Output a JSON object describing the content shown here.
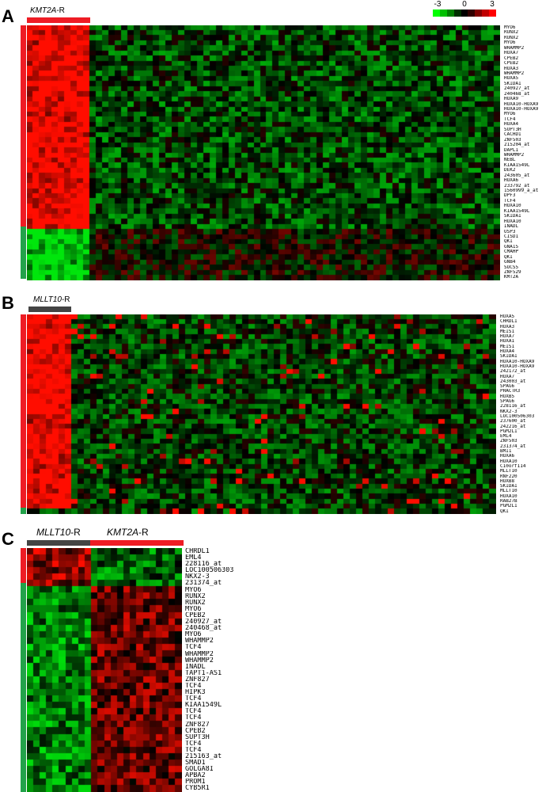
{
  "legend": {
    "ticks": [
      "-3",
      "0",
      "3"
    ],
    "colors": [
      "#00ff00",
      "#00c000",
      "#008000",
      "#003000",
      "#000000",
      "#300000",
      "#800000",
      "#c00000",
      "#ff0000"
    ]
  },
  "colors": {
    "red_bar": "#ee1c24",
    "green_bar": "#22a24a",
    "dark_bar": "#444444"
  },
  "panels": {
    "A": {
      "letter": "A",
      "header": {
        "gene": "KMT2A",
        "suffix": "-R"
      },
      "genes": [
        "MYO6",
        "RUNX2",
        "RUNX2",
        "MYO6",
        "WHAMMP2",
        "HOXA7",
        "CPEB2",
        "CPEB2",
        "HOXA3",
        "WHAMMP2",
        "HOXA5",
        "SKIDA1",
        "240927_at",
        "240468_at",
        "HOXA9",
        "HOXA10-HOXA9",
        "HOXA10-HOXA9",
        "MYO6",
        "TCF4",
        "HOXA4",
        "SUPT3H",
        "CACHD1",
        "ZNF503",
        "215204_at",
        "DAPL1",
        "WHAMMP2",
        "NEBL",
        "KIAA1549L",
        "DEK2",
        "243605_at",
        "HOXA6",
        "233792_at",
        "1560999_a_at",
        "DPF3",
        "TCF4",
        "HOXA10",
        "KIAA1549L",
        "SKIDA1",
        "HOXA10",
        "INADL",
        "USP3",
        "CISD1",
        "QKI",
        "GNA15",
        "CMAHP",
        "QKI",
        "GNB4",
        "SOCS5",
        "ZNF529",
        "KMT2A"
      ]
    },
    "B": {
      "letter": "B",
      "header": {
        "gene": "MLLT10",
        "suffix": "-R"
      },
      "genes": [
        "HOXA5",
        "CHRDL1",
        "HOXA3",
        "MEIS1",
        "HOXA7",
        "HOXA1",
        "MEIS1",
        "HOXA4",
        "SKIDA1",
        "HOXA10-HOXA9",
        "HOXA10-HOXA9",
        "242172_at",
        "HOXA7",
        "243003_at",
        "SPAG6",
        "PHACTR3",
        "HOXB5",
        "SPAG6",
        "228116_at",
        "NKX2-3",
        "LOC100506303",
        "237600_at",
        "242216_at",
        "PGM2L1",
        "EML4",
        "ZNF503",
        "231374_at",
        "BMI1",
        "HOXA6",
        "HOXA10",
        "C10orf114",
        "MLLT10",
        "RNF220",
        "HOXB8",
        "SKIDA1",
        "MLLT10",
        "HOXA10",
        "RAB27B",
        "PGM2L1",
        "QKI"
      ]
    },
    "C": {
      "letter": "C",
      "header1": {
        "gene": "MLLT10",
        "suffix": "-R"
      },
      "header2": {
        "gene": "KMT2A",
        "suffix": "-R"
      },
      "genes": [
        "CHRDL1",
        "EML4",
        "228116_at",
        "LOC100506303",
        "NKX2-3",
        "231374_at",
        "MYO6",
        "RUNX2",
        "RUNX2",
        "MYO6",
        "CPEB2",
        "240927_at",
        "240468_at",
        "MYO6",
        "WHAMMP2",
        "TCF4",
        "WHAMMP2",
        "WHAMMP2",
        "INADL",
        "TAPT1-AS1",
        "ZNF827",
        "TCF4",
        "HIPK3",
        "TCF4",
        "KIAA1549L",
        "TCF4",
        "TCF4",
        "ZNF827",
        "CPEB2",
        "SUPT3H",
        "TCF4",
        "TCF4",
        "215163_at",
        "SMAD1",
        "GOLGA8I",
        "APBA2",
        "PROM1",
        "CYB5R1"
      ]
    }
  }
}
